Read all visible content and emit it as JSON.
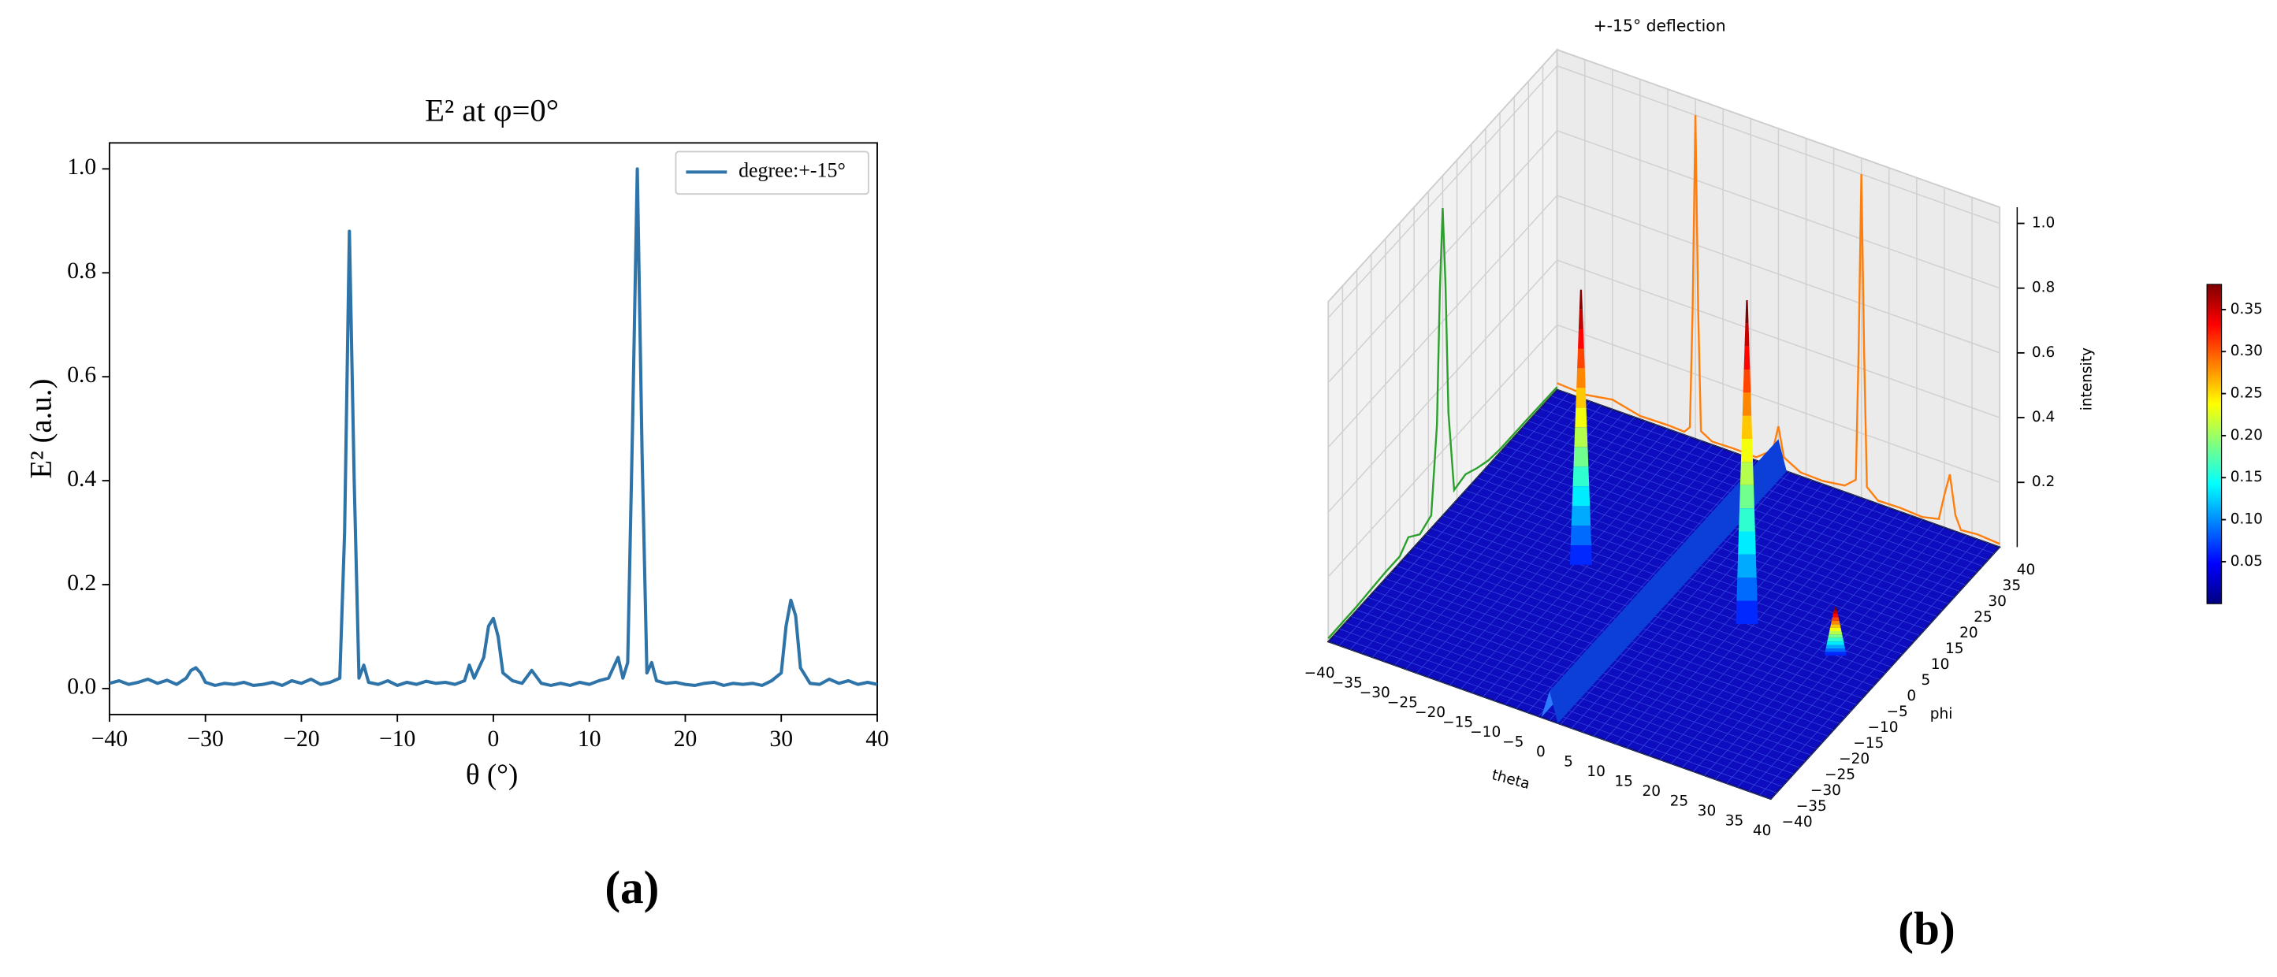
{
  "chart_data": [
    {
      "type": "line",
      "title": "E² at φ=0°",
      "xlabel": "θ (°)",
      "ylabel": "E² (a.u.)",
      "caption": "(a)",
      "x": [
        -40,
        -39,
        -38,
        -37,
        -36,
        -35,
        -34,
        -33,
        -32,
        -31.5,
        -31,
        -30.5,
        -30,
        -29,
        -28,
        -27,
        -26,
        -25,
        -24,
        -23,
        -22,
        -21,
        -20,
        -19,
        -18,
        -17,
        -16,
        -15.5,
        -15,
        -14.5,
        -14,
        -13.5,
        -13,
        -12,
        -11,
        -10,
        -9,
        -8,
        -7,
        -6,
        -5,
        -4,
        -3,
        -2.5,
        -2,
        -1,
        -0.5,
        0,
        0.5,
        1,
        2,
        3,
        4,
        5,
        6,
        7,
        8,
        9,
        10,
        11,
        12,
        13,
        13.5,
        14,
        14.5,
        15,
        15.5,
        16,
        16.5,
        17,
        18,
        19,
        20,
        21,
        22,
        23,
        24,
        25,
        26,
        27,
        28,
        29,
        30,
        30.5,
        31,
        31.5,
        32,
        33,
        34,
        35,
        36,
        37,
        38,
        39,
        40
      ],
      "series": [
        {
          "name": "degree:+-15°",
          "color": "#2f74a8",
          "values": [
            0.01,
            0.015,
            0.008,
            0.012,
            0.018,
            0.01,
            0.016,
            0.008,
            0.02,
            0.035,
            0.04,
            0.03,
            0.012,
            0.006,
            0.01,
            0.008,
            0.012,
            0.006,
            0.008,
            0.012,
            0.006,
            0.015,
            0.01,
            0.018,
            0.008,
            0.012,
            0.02,
            0.3,
            0.88,
            0.4,
            0.02,
            0.045,
            0.012,
            0.008,
            0.015,
            0.006,
            0.012,
            0.008,
            0.014,
            0.01,
            0.012,
            0.008,
            0.015,
            0.045,
            0.02,
            0.06,
            0.12,
            0.135,
            0.1,
            0.03,
            0.015,
            0.01,
            0.035,
            0.01,
            0.006,
            0.01,
            0.006,
            0.012,
            0.008,
            0.015,
            0.02,
            0.06,
            0.02,
            0.05,
            0.5,
            1.0,
            0.45,
            0.03,
            0.05,
            0.015,
            0.01,
            0.012,
            0.008,
            0.006,
            0.01,
            0.012,
            0.006,
            0.01,
            0.008,
            0.01,
            0.006,
            0.015,
            0.03,
            0.12,
            0.17,
            0.14,
            0.04,
            0.01,
            0.008,
            0.018,
            0.01,
            0.015,
            0.008,
            0.012,
            0.008
          ]
        }
      ],
      "xlim": [
        -40,
        40
      ],
      "ylim": [
        -0.05,
        1.05
      ],
      "xticks": [
        {
          "value": -40,
          "label": "−40"
        },
        {
          "value": -30,
          "label": "−30"
        },
        {
          "value": -20,
          "label": "−20"
        },
        {
          "value": -10,
          "label": "−10"
        },
        0,
        10,
        20,
        30,
        40
      ],
      "yticks": [
        {
          "value": 0,
          "label": "0.0"
        },
        0.2,
        0.4,
        0.6,
        0.8,
        {
          "value": 1,
          "label": "1.0"
        }
      ],
      "legend": "upper right"
    },
    {
      "type": "surface3d",
      "title": "+-15° deflection",
      "caption": "(b)",
      "xlabel": "theta",
      "ylabel": "phi",
      "zlabel": "intensity",
      "xlim": [
        -40,
        40
      ],
      "ylim": [
        -40,
        40
      ],
      "zlim": [
        0,
        1.05
      ],
      "xticks": [
        {
          "value": -40,
          "label": "−40"
        },
        {
          "value": -35,
          "label": "−35"
        },
        {
          "value": -30,
          "label": "−30"
        },
        {
          "value": -25,
          "label": "−25"
        },
        {
          "value": -20,
          "label": "−20"
        },
        {
          "value": -15,
          "label": "−15"
        },
        {
          "value": -10,
          "label": "−10"
        },
        {
          "value": -5,
          "label": "−5"
        },
        0,
        5,
        10,
        15,
        20,
        25,
        30,
        35,
        40
      ],
      "yticks": [
        {
          "value": -40,
          "label": "−40"
        },
        {
          "value": -35,
          "label": "−35"
        },
        {
          "value": -30,
          "label": "−30"
        },
        {
          "value": -25,
          "label": "−25"
        },
        {
          "value": -20,
          "label": "−20"
        },
        {
          "value": -15,
          "label": "−15"
        },
        {
          "value": -10,
          "label": "−10"
        },
        {
          "value": -5,
          "label": "−5"
        },
        0,
        5,
        10,
        15,
        20,
        25,
        30,
        35,
        40
      ],
      "zticks": [
        0.2,
        0.4,
        0.6,
        0.8,
        {
          "value": 1,
          "label": "1.0"
        }
      ],
      "clim": [
        0,
        0.38
      ],
      "colormap": "jet",
      "cticks": [
        0.05,
        {
          "value": 0.1,
          "label": "0.10"
        },
        0.15,
        {
          "value": 0.2,
          "label": "0.20"
        },
        0.25,
        {
          "value": 0.3,
          "label": "0.30"
        },
        0.35
      ],
      "peaks": {
        "x": [
          -15,
          15,
          31
        ],
        "y": [
          0,
          0,
          0
        ],
        "values": [
          0.85,
          1.0,
          0.15
        ]
      },
      "ridge_x": 0,
      "ridge_value": 0.09,
      "back_wall_profile": {
        "color": "#ff7f0e",
        "x": [
          -40,
          -35,
          -30,
          -25,
          -20,
          -17,
          -16,
          -15.5,
          -15,
          -14.5,
          -14,
          -12,
          -8,
          -4,
          -1,
          0,
          1,
          4,
          8,
          12,
          14,
          14.5,
          15,
          15.5,
          16,
          18,
          22,
          26,
          29,
          30,
          31,
          32,
          33,
          36,
          40
        ],
        "values": [
          0.02,
          0.015,
          0.03,
          0.01,
          0.012,
          0.01,
          0.03,
          0.4,
          1.0,
          0.4,
          0.03,
          0.01,
          0.012,
          0.01,
          0.05,
          0.13,
          0.04,
          0.012,
          0.01,
          0.02,
          0.05,
          0.45,
          1.0,
          0.45,
          0.04,
          0.01,
          0.012,
          0.008,
          0.02,
          0.1,
          0.17,
          0.05,
          0.01,
          0.015,
          0.01
        ]
      },
      "side_wall_profile": {
        "color": "#2ca02c",
        "y": [
          -40,
          -30,
          -20,
          -15,
          -12,
          -8,
          -4,
          -2,
          -1,
          0,
          1,
          2,
          4,
          8,
          12,
          16,
          20,
          30,
          40
        ],
        "values": [
          0.01,
          0.012,
          0.02,
          0.02,
          0.05,
          0.02,
          0.04,
          0.3,
          0.7,
          0.95,
          0.7,
          0.3,
          0.04,
          0.05,
          0.03,
          0.015,
          0.01,
          0.01,
          0.008
        ]
      }
    }
  ]
}
